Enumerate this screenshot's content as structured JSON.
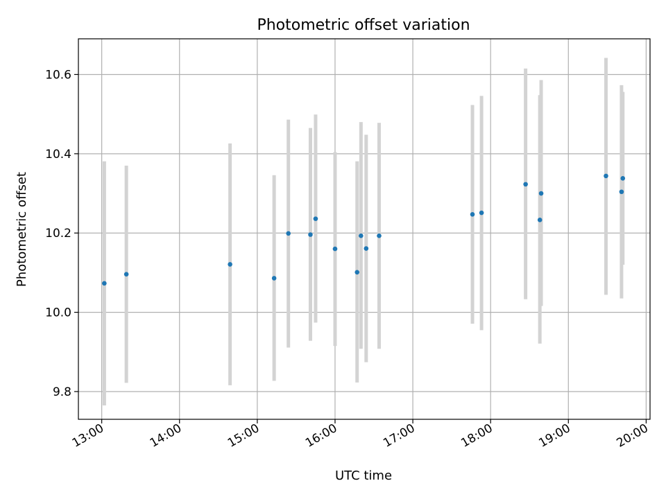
{
  "chart_data": {
    "type": "scatter",
    "title": "Photometric offset variation",
    "xlabel": "UTC time",
    "ylabel": "Photometric offset",
    "xlim": [
      "12:42",
      "20:03"
    ],
    "ylim": [
      9.73,
      10.69
    ],
    "x_ticks": [
      "13:00",
      "14:00",
      "15:00",
      "16:00",
      "17:00",
      "18:00",
      "19:00",
      "20:00"
    ],
    "y_ticks": [
      9.8,
      10.0,
      10.2,
      10.4,
      10.6
    ],
    "grid": true,
    "error_bars": true,
    "colors": {
      "point": "#1f77b4",
      "errorbar": "#d3d3d3",
      "grid": "#b0b0b0"
    },
    "points": [
      {
        "x": "13:02",
        "y": 10.073,
        "ylow": 9.765,
        "yhigh": 10.381
      },
      {
        "x": "13:19",
        "y": 10.096,
        "ylow": 9.822,
        "yhigh": 10.37
      },
      {
        "x": "14:39",
        "y": 10.121,
        "ylow": 9.816,
        "yhigh": 10.426
      },
      {
        "x": "15:13",
        "y": 10.086,
        "ylow": 9.827,
        "yhigh": 10.346
      },
      {
        "x": "15:24",
        "y": 10.199,
        "ylow": 9.911,
        "yhigh": 10.486
      },
      {
        "x": "15:41",
        "y": 10.196,
        "ylow": 9.928,
        "yhigh": 10.465
      },
      {
        "x": "15:45",
        "y": 10.236,
        "ylow": 9.974,
        "yhigh": 10.499
      },
      {
        "x": "16:00",
        "y": 10.16,
        "ylow": 9.915,
        "yhigh": 10.404
      },
      {
        "x": "16:17",
        "y": 10.101,
        "ylow": 9.823,
        "yhigh": 10.381
      },
      {
        "x": "16:20",
        "y": 10.193,
        "ylow": 9.908,
        "yhigh": 10.48
      },
      {
        "x": "16:24",
        "y": 10.161,
        "ylow": 9.874,
        "yhigh": 10.448
      },
      {
        "x": "16:34",
        "y": 10.193,
        "ylow": 9.908,
        "yhigh": 10.478
      },
      {
        "x": "17:46",
        "y": 10.247,
        "ylow": 9.971,
        "yhigh": 10.523
      },
      {
        "x": "17:53",
        "y": 10.251,
        "ylow": 9.955,
        "yhigh": 10.546
      },
      {
        "x": "18:27",
        "y": 10.323,
        "ylow": 10.033,
        "yhigh": 10.615
      },
      {
        "x": "18:38",
        "y": 10.233,
        "ylow": 9.921,
        "yhigh": 10.548
      },
      {
        "x": "18:39",
        "y": 10.3,
        "ylow": 10.016,
        "yhigh": 10.586
      },
      {
        "x": "19:29",
        "y": 10.344,
        "ylow": 10.044,
        "yhigh": 10.642
      },
      {
        "x": "19:41",
        "y": 10.304,
        "ylow": 10.035,
        "yhigh": 10.573
      },
      {
        "x": "19:42",
        "y": 10.338,
        "ylow": 10.12,
        "yhigh": 10.556
      }
    ]
  }
}
